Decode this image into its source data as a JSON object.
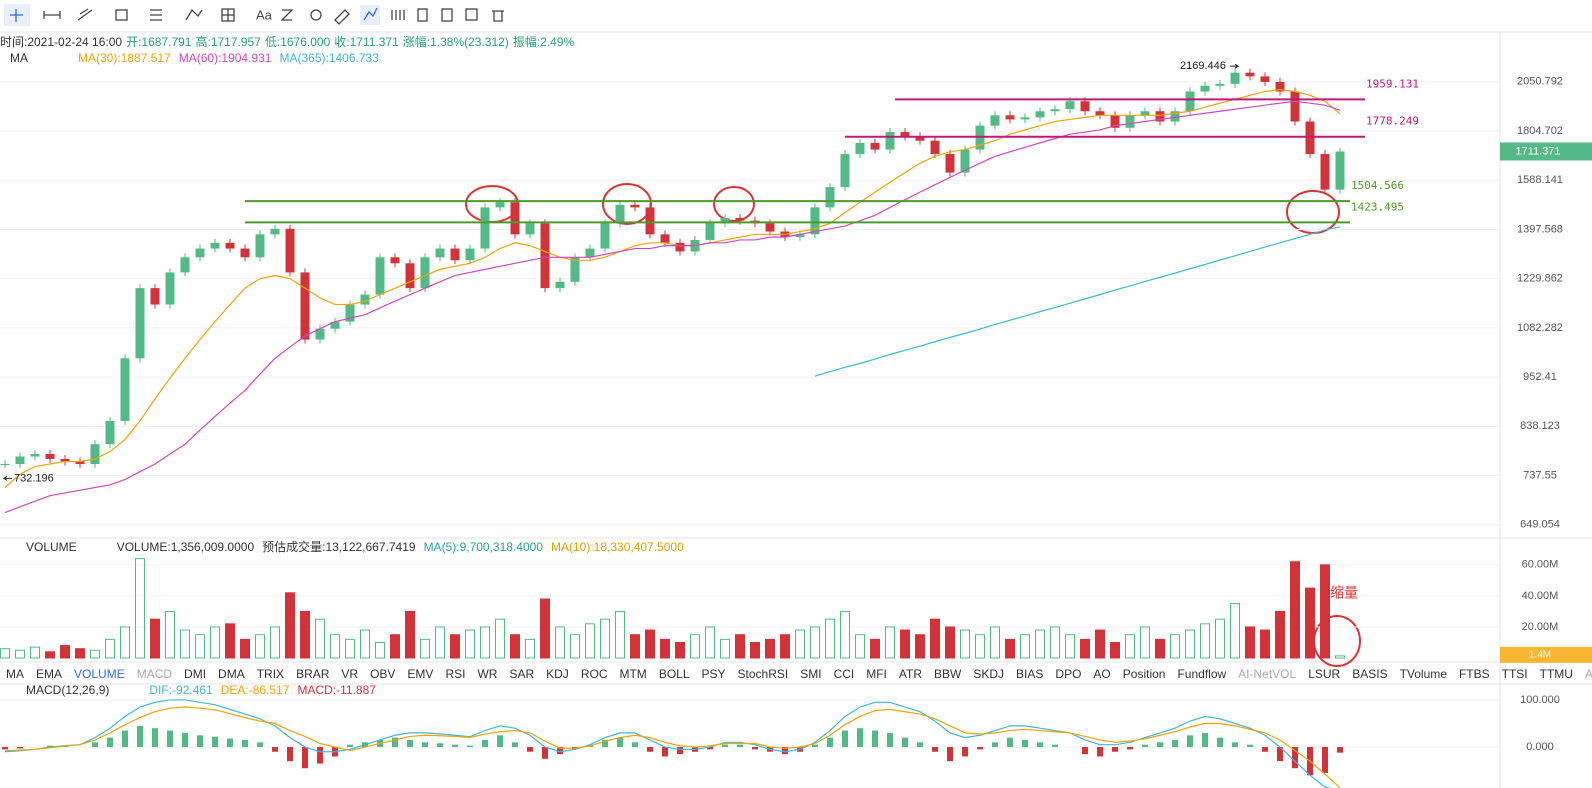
{
  "toolbar": {
    "text_tool": "Aa"
  },
  "info": [
    "时间:2021-02-24 16:00",
    "开:1687.791",
    "高:1717.957",
    "低:1676.000",
    "收:1711.371",
    "涨幅:1.38%(23.312)",
    "振幅:2.49%"
  ],
  "main": {
    "title": "MA",
    "log_scale": true,
    "ylim": [
      632,
      2316
    ],
    "yticks": [
      649.054,
      737.55,
      838.123,
      952.41,
      1082.282,
      1229.862,
      1397.568,
      1588.141,
      1804.702,
      2050.792
    ],
    "up_color": "#53b987",
    "down_color": "#d0343a",
    "close": [
      760,
      775,
      780,
      770,
      765,
      760,
      800,
      850,
      1000,
      1200,
      1150,
      1250,
      1300,
      1330,
      1350,
      1330,
      1300,
      1380,
      1400,
      1250,
      1050,
      1080,
      1100,
      1150,
      1180,
      1300,
      1280,
      1200,
      1300,
      1330,
      1290,
      1330,
      1480,
      1500,
      1380,
      1420,
      1200,
      1220,
      1300,
      1330,
      1420,
      1490,
      1480,
      1380,
      1350,
      1320,
      1360,
      1420,
      1440,
      1430,
      1420,
      1390,
      1370,
      1380,
      1480,
      1560,
      1700,
      1750,
      1720,
      1800,
      1780,
      1760,
      1700,
      1620,
      1720,
      1830,
      1880,
      1860,
      1870,
      1900,
      1910,
      1950,
      1900,
      1880,
      1820,
      1880,
      1900,
      1850,
      1900,
      2000,
      2030,
      2040,
      2100,
      2080,
      2050,
      2000,
      1850,
      1700,
      1550,
      1711.371
    ],
    "ma": [
      {
        "name": "MA(30):1887.517",
        "color": "#f0a30a",
        "values": [
          715,
          740,
          755,
          760,
          765,
          765,
          770,
          785,
          810,
          850,
          900,
          950,
          1000,
          1050,
          1100,
          1150,
          1200,
          1230,
          1240,
          1230,
          1200,
          1170,
          1150,
          1150,
          1160,
          1180,
          1200,
          1220,
          1240,
          1260,
          1270,
          1280,
          1300,
          1330,
          1350,
          1340,
          1320,
          1300,
          1290,
          1290,
          1300,
          1320,
          1340,
          1350,
          1350,
          1340,
          1340,
          1350,
          1360,
          1370,
          1380,
          1380,
          1380,
          1390,
          1400,
          1420,
          1460,
          1500,
          1540,
          1580,
          1620,
          1660,
          1690,
          1710,
          1720,
          1740,
          1760,
          1790,
          1810,
          1830,
          1850,
          1860,
          1870,
          1880,
          1880,
          1880,
          1880,
          1880,
          1890,
          1900,
          1920,
          1940,
          1960,
          1980,
          2000,
          2010,
          2000,
          1980,
          1950,
          1887.517
        ]
      },
      {
        "name": "MA(60):1904.931",
        "color": "#d048c0",
        "values": [
          670,
          680,
          690,
          700,
          705,
          710,
          715,
          720,
          730,
          745,
          760,
          780,
          800,
          830,
          860,
          890,
          920,
          960,
          1000,
          1030,
          1060,
          1080,
          1100,
          1110,
          1120,
          1140,
          1160,
          1180,
          1200,
          1220,
          1240,
          1250,
          1260,
          1270,
          1280,
          1290,
          1300,
          1300,
          1300,
          1300,
          1310,
          1320,
          1330,
          1330,
          1340,
          1340,
          1340,
          1350,
          1350,
          1360,
          1360,
          1370,
          1370,
          1380,
          1390,
          1400,
          1410,
          1430,
          1450,
          1480,
          1510,
          1540,
          1570,
          1600,
          1630,
          1660,
          1690,
          1710,
          1730,
          1750,
          1770,
          1790,
          1800,
          1810,
          1830,
          1840,
          1850,
          1860,
          1870,
          1880,
          1890,
          1900,
          1910,
          1920,
          1930,
          1940,
          1950,
          1940,
          1930,
          1904.931
        ]
      },
      {
        "name": "MA(365):1406.733",
        "color": "#3fb6d8",
        "values": [
          null,
          null,
          null,
          null,
          null,
          null,
          null,
          null,
          null,
          null,
          null,
          null,
          null,
          null,
          null,
          null,
          null,
          null,
          null,
          null,
          null,
          null,
          null,
          null,
          null,
          null,
          null,
          null,
          null,
          null,
          null,
          null,
          null,
          null,
          null,
          null,
          null,
          null,
          null,
          null,
          null,
          null,
          null,
          null,
          null,
          null,
          null,
          null,
          null,
          null,
          null,
          null,
          null,
          null,
          955,
          966,
          977,
          987,
          998,
          1010,
          1021,
          1032,
          1044,
          1056,
          1067,
          1079,
          1092,
          1104,
          1116,
          1129,
          1141,
          1154,
          1167,
          1180,
          1194,
          1207,
          1221,
          1234,
          1248,
          1262,
          1276,
          1291,
          1305,
          1320,
          1335,
          1350,
          1365,
          1380,
          1396,
          1406.733
        ]
      }
    ],
    "levels": [
      {
        "value": 1959.131,
        "color": "#c2187a"
      },
      {
        "value": 1778.249,
        "color": "#c2187a"
      },
      {
        "value": 1504.566,
        "color": "#4d9a2a"
      },
      {
        "value": 1423.495,
        "color": "#4d9a2a"
      }
    ],
    "high_mark": 2169.446,
    "low_mark": 732.196
  },
  "volume": {
    "title": "VOLUME",
    "legend": [
      "VOLUME:1,356,009.0000",
      "预估成交量:13,122,667.7419",
      "MA(5):9,700,318.4000",
      "MA(10):18,330,407.5000"
    ],
    "ylim": [
      0,
      76
    ],
    "yticks": [
      {
        "value": 20,
        "label": "20.00M"
      },
      {
        "value": 40,
        "label": "40.00M"
      },
      {
        "value": 60,
        "label": "60.00M"
      }
    ],
    "values": [
      6,
      5,
      7,
      4,
      8,
      6,
      5,
      12,
      20,
      64,
      25,
      30,
      18,
      15,
      20,
      22,
      12,
      15,
      20,
      42,
      30,
      25,
      15,
      12,
      18,
      10,
      15,
      30,
      12,
      20,
      15,
      18,
      20,
      25,
      15,
      12,
      38,
      20,
      15,
      22,
      25,
      30,
      15,
      18,
      12,
      10,
      15,
      20,
      12,
      15,
      10,
      12,
      15,
      18,
      20,
      25,
      30,
      15,
      12,
      20,
      18,
      15,
      25,
      20,
      18,
      15,
      20,
      12,
      15,
      18,
      20,
      15,
      12,
      18,
      10,
      15,
      20,
      12,
      15,
      18,
      22,
      25,
      35,
      20,
      18,
      30,
      62,
      45,
      60,
      1.356009
    ],
    "last_tag": "1.4M",
    "note": "缩量"
  },
  "tabs": [
    "MA",
    "EMA",
    "VOLUME",
    "MACD",
    "DMI",
    "DMA",
    "TRIX",
    "BRAR",
    "VR",
    "OBV",
    "EMV",
    "RSI",
    "WR",
    "SAR",
    "KDJ",
    "ROC",
    "MTM",
    "BOLL",
    "PSY",
    "StochRSI",
    "SMI",
    "CCI",
    "MFI",
    "ATR",
    "BBW",
    "SKDJ",
    "BIAS",
    "DPO",
    "AO",
    "Position",
    "Fundflow",
    "AI-NetVOL",
    "LSUR",
    "BASIS",
    "TVolume",
    "FTBS",
    "TTSI",
    "TTMU",
    "AI-BSI"
  ],
  "macd": {
    "title": "MACD(12,26,9)",
    "legend": [
      {
        "text": "DIF:-92.461",
        "color": "#3fb6d8"
      },
      {
        "text": "DEA:-86.517",
        "color": "#f0a30a"
      },
      {
        "text": "MACD:-11.887",
        "color": "#d0343a"
      }
    ],
    "ylim": [
      -87,
      136
    ],
    "yticks": [
      {
        "value": 0,
        "label": "0.000"
      },
      {
        "value": 100,
        "label": "100.000"
      }
    ],
    "hist": [
      -5,
      -3,
      0,
      3,
      2,
      0,
      10,
      20,
      35,
      45,
      40,
      35,
      30,
      25,
      22,
      18,
      15,
      10,
      -10,
      -30,
      -45,
      -35,
      -20,
      5,
      10,
      15,
      20,
      15,
      10,
      8,
      5,
      3,
      15,
      25,
      10,
      -10,
      -25,
      -15,
      -5,
      5,
      15,
      20,
      10,
      -10,
      -20,
      -15,
      -10,
      -5,
      5,
      5,
      -5,
      -10,
      -15,
      -10,
      5,
      20,
      35,
      40,
      35,
      30,
      20,
      10,
      -10,
      -30,
      -20,
      -5,
      10,
      20,
      15,
      10,
      5,
      0,
      -15,
      -20,
      -10,
      -5,
      5,
      10,
      15,
      25,
      30,
      20,
      10,
      5,
      -10,
      -30,
      -45,
      -60,
      -55,
      -11.887
    ],
    "dif": [
      -10,
      -8,
      -5,
      0,
      3,
      5,
      20,
      40,
      65,
      85,
      95,
      100,
      100,
      95,
      90,
      80,
      70,
      60,
      45,
      20,
      0,
      -10,
      -10,
      -5,
      5,
      15,
      25,
      30,
      30,
      28,
      25,
      22,
      35,
      45,
      40,
      25,
      0,
      -10,
      -5,
      5,
      20,
      30,
      30,
      15,
      0,
      -5,
      -5,
      0,
      10,
      10,
      5,
      -5,
      -10,
      -5,
      10,
      35,
      65,
      85,
      95,
      95,
      85,
      75,
      55,
      30,
      20,
      25,
      35,
      45,
      45,
      40,
      35,
      30,
      15,
      5,
      5,
      10,
      20,
      30,
      40,
      55,
      65,
      60,
      50,
      40,
      25,
      0,
      -30,
      -60,
      -85,
      -92.461
    ],
    "dea": [
      -7.5,
      -6.5,
      -5,
      -1.5,
      2,
      5,
      15,
      30,
      47.5,
      62.5,
      75,
      82.5,
      85,
      82.5,
      79,
      71,
      62.5,
      55,
      50,
      35,
      22.5,
      7.5,
      0,
      -7.5,
      0,
      7.5,
      15,
      22.5,
      25,
      24,
      22.5,
      20.5,
      27.5,
      32.5,
      35,
      30,
      12.5,
      -2.5,
      -2.5,
      2.5,
      12.5,
      20,
      25,
      20,
      10,
      2.5,
      0,
      2.5,
      7.5,
      7.5,
      7.5,
      0,
      -2.5,
      0,
      7.5,
      25,
      47.5,
      65,
      77.5,
      80,
      75,
      70,
      60,
      45,
      30,
      27.5,
      30,
      35,
      37.5,
      35,
      32.5,
      30,
      22.5,
      15,
      10,
      12.5,
      17.5,
      25,
      32.5,
      42.5,
      50,
      50,
      45,
      37.5,
      30,
      15,
      -7.5,
      -30,
      -57.5,
      -86.517
    ]
  }
}
